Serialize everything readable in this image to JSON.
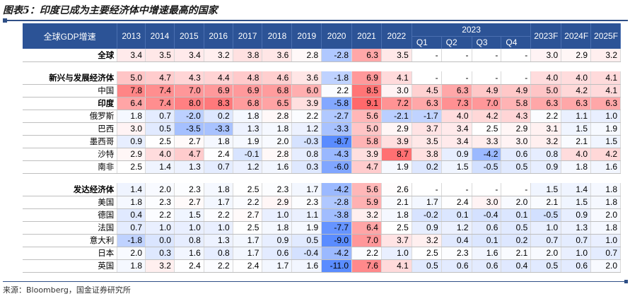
{
  "figure_title": "图表5：印度已成为主要经济体中增速最高的国家",
  "source_note": "来源：Bloomberg，国金证券研究所",
  "table": {
    "header_label": "全球GDP增速",
    "years": [
      "2013",
      "2014",
      "2015",
      "2016",
      "2017",
      "2018",
      "2019",
      "2020",
      "2021",
      "2022"
    ],
    "group_year": "2023",
    "quarters": [
      "Q1",
      "Q2",
      "Q3",
      "Q4"
    ],
    "forecasts": [
      "2023F",
      "2024F",
      "2025F"
    ],
    "sections": [
      {
        "rows": [
          {
            "name": "全球",
            "bold": true,
            "values": [
              3.4,
              3.5,
              3.4,
              3.2,
              3.8,
              3.6,
              2.8,
              -2.8,
              6.3,
              3.5
            ],
            "quarters": [
              "-",
              "-",
              "-",
              "-"
            ],
            "forecasts": [
              3.0,
              2.9,
              3.2
            ]
          }
        ]
      },
      {
        "rows": [
          {
            "name": "新兴与发展经济体",
            "bold": true,
            "values": [
              5.0,
              4.7,
              4.3,
              4.4,
              4.8,
              4.6,
              3.6,
              -1.8,
              6.9,
              4.1
            ],
            "quarters": [
              "-",
              "-",
              "-",
              "-"
            ],
            "forecasts": [
              4.0,
              4.0,
              4.1
            ]
          },
          {
            "name": "中国",
            "bold": false,
            "values": [
              7.8,
              7.4,
              7.0,
              6.9,
              6.9,
              6.8,
              6.0,
              2.2,
              8.5,
              3.0
            ],
            "quarters": [
              4.5,
              6.3,
              4.9,
              4.9
            ],
            "forecasts": [
              5.0,
              4.2,
              4.1
            ]
          },
          {
            "name": "印度",
            "bold": true,
            "values": [
              6.4,
              7.4,
              8.0,
              8.3,
              6.8,
              6.5,
              3.9,
              -5.8,
              9.1,
              7.2
            ],
            "quarters": [
              6.3,
              7.3,
              7.0,
              5.8
            ],
            "forecasts": [
              6.3,
              6.3,
              6.3
            ]
          },
          {
            "name": "俄罗斯",
            "bold": false,
            "values": [
              1.8,
              0.7,
              -2.0,
              0.2,
              1.8,
              2.8,
              2.2,
              -2.7,
              5.6,
              -2.1
            ],
            "quarters": [
              -1.7,
              4.0,
              4.2,
              4.3
            ],
            "forecasts": [
              2.2,
              1.1,
              1.0
            ]
          },
          {
            "name": "巴西",
            "bold": false,
            "values": [
              3.0,
              0.5,
              -3.5,
              -3.3,
              1.3,
              1.8,
              1.2,
              -3.3,
              5.0,
              2.9
            ],
            "quarters": [
              3.7,
              3.4,
              2.5,
              2.9
            ],
            "forecasts": [
              3.1,
              1.5,
              1.9
            ]
          },
          {
            "name": "墨西哥",
            "bold": false,
            "values": [
              0.9,
              2.5,
              2.7,
              1.8,
              1.9,
              2.0,
              -0.3,
              -8.7,
              5.8,
              3.9
            ],
            "quarters": [
              3.5,
              3.4,
              3.3,
              3.0
            ],
            "forecasts": [
              3.2,
              2.1,
              1.5
            ]
          },
          {
            "name": "沙特",
            "bold": false,
            "values": [
              2.9,
              4.0,
              4.7,
              2.4,
              -0.1,
              2.8,
              0.8,
              -4.3,
              3.9,
              8.7
            ],
            "quarters": [
              3.8,
              0.9,
              -4.2,
              0.6
            ],
            "forecasts": [
              0.8,
              4.0,
              4.2
            ]
          },
          {
            "name": "南非",
            "bold": false,
            "values": [
              2.5,
              1.4,
              1.3,
              0.7,
              1.2,
              1.6,
              0.3,
              -6.0,
              4.7,
              1.9
            ],
            "quarters": [
              0.2,
              1.5,
              -0.5,
              0.5
            ],
            "forecasts": [
              0.9,
              1.8,
              1.6
            ]
          }
        ]
      },
      {
        "rows": [
          {
            "name": "发达经济体",
            "bold": true,
            "values": [
              1.4,
              2.0,
              2.3,
              1.8,
              2.5,
              2.3,
              1.7,
              -4.2,
              5.6,
              2.6
            ],
            "quarters": [
              "-",
              "-",
              "-",
              "-"
            ],
            "forecasts": [
              1.5,
              1.4,
              1.8
            ]
          },
          {
            "name": "美国",
            "bold": false,
            "values": [
              1.8,
              2.3,
              2.7,
              1.7,
              2.2,
              2.9,
              2.3,
              -2.8,
              5.9,
              2.1
            ],
            "quarters": [
              1.7,
              2.4,
              3.0,
              2.0
            ],
            "forecasts": [
              2.1,
              1.5,
              1.8
            ]
          },
          {
            "name": "德国",
            "bold": false,
            "values": [
              0.4,
              2.2,
              1.5,
              2.2,
              2.7,
              1.0,
              1.1,
              -3.8,
              3.2,
              1.8
            ],
            "quarters": [
              -0.2,
              0.1,
              -0.4,
              0.1
            ],
            "forecasts": [
              -0.5,
              0.9,
              2.0
            ]
          },
          {
            "name": "法国",
            "bold": false,
            "values": [
              0.7,
              1.0,
              1.0,
              1.0,
              2.5,
              1.8,
              1.9,
              -7.7,
              6.4,
              2.5
            ],
            "quarters": [
              0.9,
              1.2,
              0.6,
              0.5
            ],
            "forecasts": [
              1.0,
              1.3,
              1.8
            ]
          },
          {
            "name": "意大利",
            "bold": false,
            "values": [
              -1.8,
              0.0,
              0.8,
              1.3,
              1.7,
              0.9,
              0.5,
              -9.0,
              7.0,
              3.7
            ],
            "quarters": [
              3.2,
              0.4,
              0.1,
              0.2
            ],
            "forecasts": [
              0.7,
              0.7,
              1.0
            ]
          },
          {
            "name": "日本",
            "bold": false,
            "values": [
              2.0,
              0.3,
              1.6,
              0.8,
              1.7,
              0.6,
              -0.4,
              -4.2,
              2.2,
              1.0
            ],
            "quarters": [
              2.5,
              2.3,
              1.6,
              2.1
            ],
            "forecasts": [
              2.0,
              1.0,
              0.7
            ]
          },
          {
            "name": "英国",
            "bold": false,
            "values": [
              1.8,
              3.2,
              2.4,
              2.2,
              2.4,
              1.7,
              1.6,
              -11.0,
              7.6,
              4.1
            ],
            "quarters": [
              0.5,
              0.6,
              0.6,
              0.4
            ],
            "forecasts": [
              0.5,
              0.6,
              2.0
            ]
          }
        ]
      }
    ]
  }
}
